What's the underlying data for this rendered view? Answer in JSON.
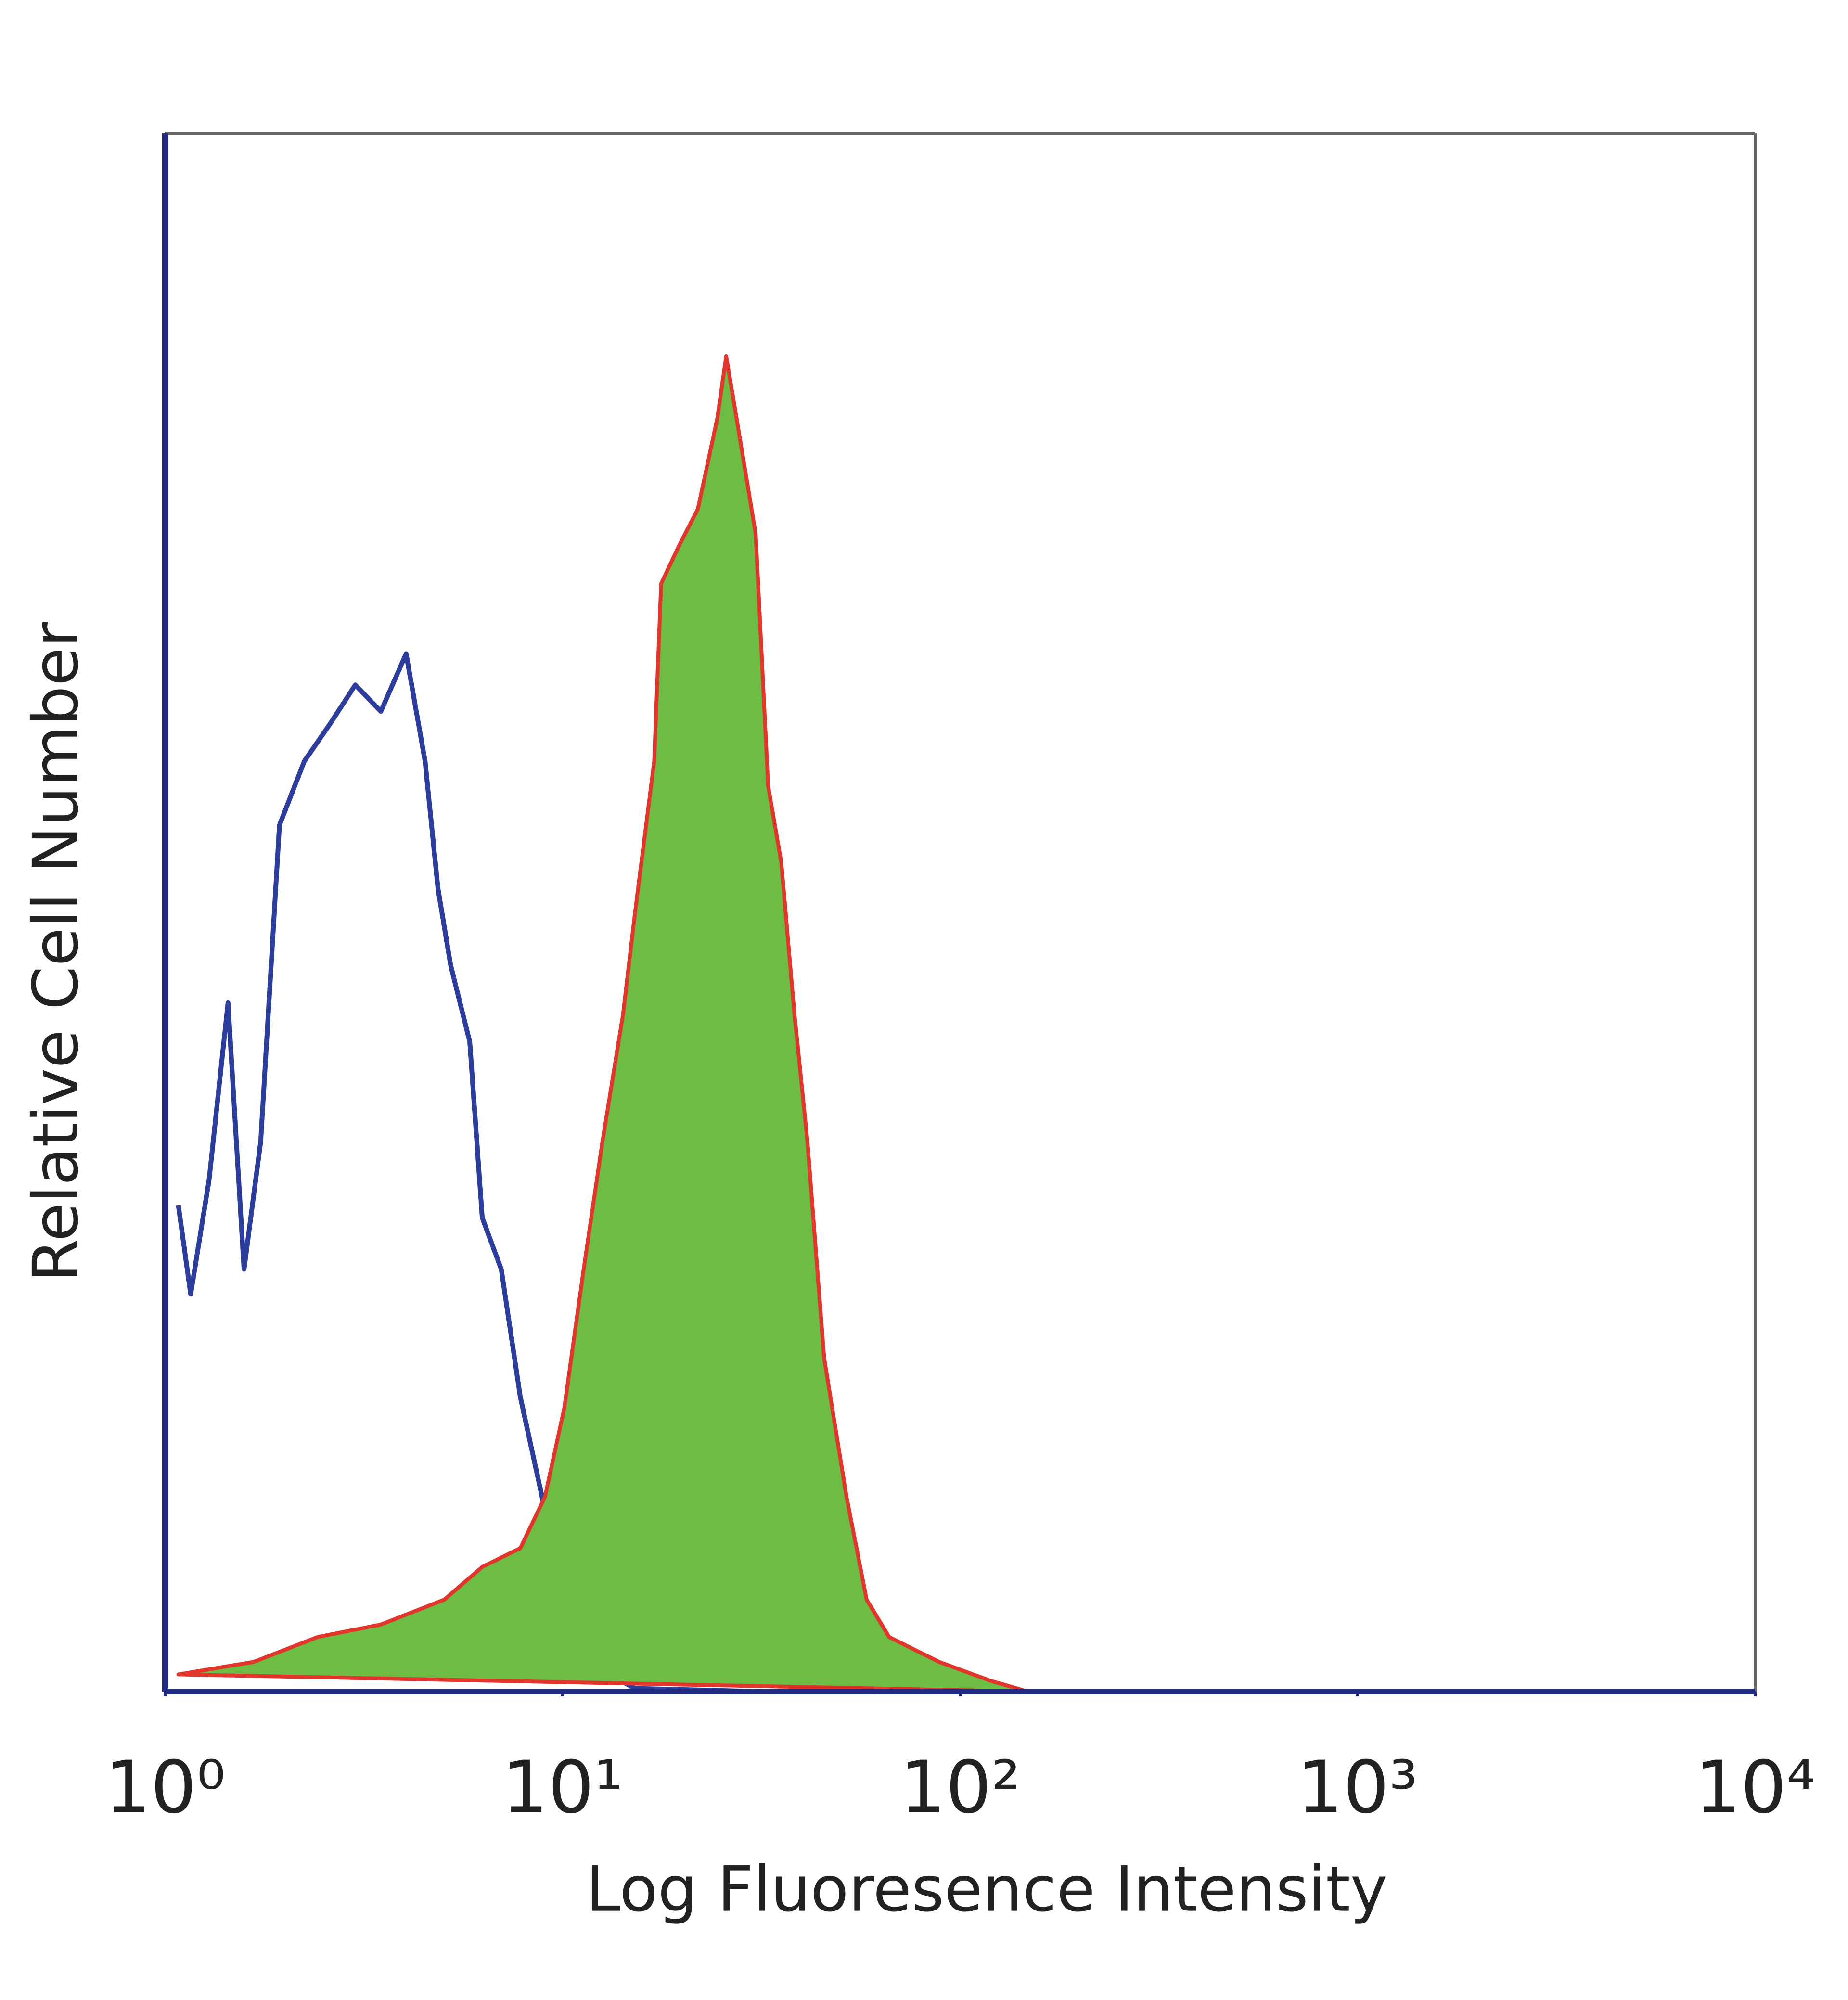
{
  "chart_data": {
    "type": "histogram-line",
    "xlabel": "Log Fluoresence Intensity",
    "ylabel": "Relative Cell Number",
    "xscale": "log",
    "xlim": [
      1,
      10000
    ],
    "xticks": [
      {
        "value": 1,
        "label": "10⁰"
      },
      {
        "value": 10,
        "label": "10¹"
      },
      {
        "value": 100,
        "label": "10²"
      },
      {
        "value": 1000,
        "label": "10³"
      },
      {
        "value": 10000,
        "label": "10⁴"
      }
    ],
    "ylim": [
      0,
      100
    ],
    "series": [
      {
        "color": "#2c3d9e",
        "fill": false,
        "x": [
          1.08,
          1.16,
          1.29,
          1.44,
          1.58,
          1.74,
          1.94,
          2.24,
          2.6,
          3.01,
          3.49,
          4.04,
          4.51,
          4.86,
          5.23,
          5.84,
          6.28,
          7.01,
          7.83,
          8.74,
          9.77,
          11.3,
          13.1,
          15.2,
          31.6
        ],
        "values": [
          31.2,
          25.5,
          32.8,
          44.2,
          27.1,
          35.3,
          55.6,
          59.7,
          62.1,
          64.6,
          62.9,
          66.6,
          59.7,
          51.5,
          46.6,
          41.7,
          30.4,
          27.1,
          18.9,
          13.3,
          7.6,
          3.5,
          1.1,
          0.2,
          0
        ]
      },
      {
        "color": "#6dbd45",
        "edgecolor": "#e2352b",
        "fill": true,
        "x": [
          1.08,
          1.67,
          2.42,
          3.49,
          5.04,
          6.28,
          7.83,
          9.03,
          10.1,
          11.3,
          12.6,
          14.2,
          15.2,
          17.0,
          17.7,
          19.6,
          21.9,
          24.5,
          25.8,
          27.4,
          30.6,
          32.9,
          35.5,
          38.3,
          41.3,
          45.5,
          51.8,
          58.2,
          66.3,
          88.6,
          119,
          148
        ],
        "values": [
          1.1,
          1.9,
          3.5,
          4.3,
          5.9,
          8.0,
          9.2,
          12.5,
          18.2,
          27.1,
          35.3,
          43.5,
          49.9,
          59.7,
          71.1,
          73.5,
          75.9,
          81.7,
          85.7,
          81.7,
          74.3,
          58.1,
          53.2,
          43.5,
          35.3,
          21.4,
          12.5,
          5.9,
          3.5,
          1.9,
          0.7,
          0
        ]
      }
    ]
  }
}
